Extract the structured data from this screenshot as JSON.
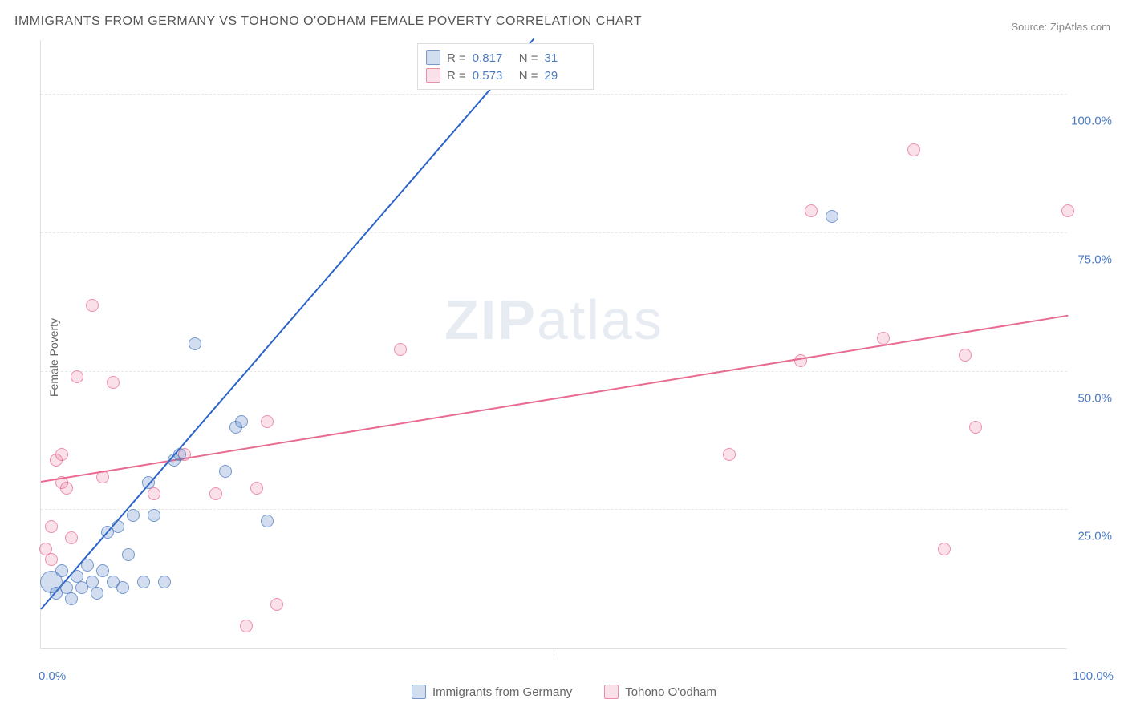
{
  "title": "IMMIGRANTS FROM GERMANY VS TOHONO O'ODHAM FEMALE POVERTY CORRELATION CHART",
  "source": "Source: ZipAtlas.com",
  "y_axis_label": "Female Poverty",
  "watermark_prefix": "ZIP",
  "watermark_suffix": "atlas",
  "chart": {
    "type": "scatter",
    "xlim": [
      0,
      100
    ],
    "ylim": [
      0,
      110
    ],
    "y_ticks": [
      25,
      50,
      75,
      100
    ],
    "y_tick_labels": [
      "25.0%",
      "50.0%",
      "75.0%",
      "100.0%"
    ],
    "x_ticks": [
      0,
      50,
      100
    ],
    "x_tick_labels": [
      "0.0%",
      "",
      "100.0%"
    ],
    "background_color": "#ffffff",
    "grid_color": "#e8e8e8",
    "axis_color": "#e0e0e0",
    "tick_label_color": "#4d7bc0",
    "axis_label_color": "#666666",
    "title_color": "#555555",
    "title_fontsize": 16,
    "label_fontsize": 14,
    "tick_fontsize": 15,
    "point_radius": 8,
    "large_point_radius": 14
  },
  "legend_top": {
    "rows": [
      {
        "color": "blue",
        "r_label": "R =",
        "r_value": "0.817",
        "n_label": "N =",
        "n_value": "31"
      },
      {
        "color": "pink",
        "r_label": "R =",
        "r_value": "0.573",
        "n_label": "N =",
        "n_value": "29"
      }
    ]
  },
  "legend_bottom": {
    "items": [
      {
        "color": "blue",
        "label": "Immigrants from Germany"
      },
      {
        "color": "pink",
        "label": "Tohono O'odham"
      }
    ]
  },
  "series": {
    "blue": {
      "color_fill": "rgba(77,123,192,0.25)",
      "color_stroke": "rgba(77,123,192,0.7)",
      "trend_color": "#2b63c8",
      "trend": {
        "x1": 0,
        "y1": 7,
        "x2": 48,
        "y2": 110
      },
      "points": [
        {
          "x": 1,
          "y": 12,
          "r": 14
        },
        {
          "x": 1.5,
          "y": 10
        },
        {
          "x": 2,
          "y": 14
        },
        {
          "x": 2.5,
          "y": 11
        },
        {
          "x": 3,
          "y": 9
        },
        {
          "x": 3.5,
          "y": 13
        },
        {
          "x": 4,
          "y": 11
        },
        {
          "x": 4.5,
          "y": 15
        },
        {
          "x": 5,
          "y": 12
        },
        {
          "x": 5.5,
          "y": 10
        },
        {
          "x": 6,
          "y": 14
        },
        {
          "x": 6.5,
          "y": 21
        },
        {
          "x": 7,
          "y": 12
        },
        {
          "x": 7.5,
          "y": 22
        },
        {
          "x": 8,
          "y": 11
        },
        {
          "x": 8.5,
          "y": 17
        },
        {
          "x": 9,
          "y": 24
        },
        {
          "x": 10,
          "y": 12
        },
        {
          "x": 10.5,
          "y": 30
        },
        {
          "x": 11,
          "y": 24
        },
        {
          "x": 12,
          "y": 12
        },
        {
          "x": 13,
          "y": 34
        },
        {
          "x": 13.5,
          "y": 35
        },
        {
          "x": 15,
          "y": 55
        },
        {
          "x": 18,
          "y": 32
        },
        {
          "x": 19,
          "y": 40
        },
        {
          "x": 19.5,
          "y": 41
        },
        {
          "x": 22,
          "y": 23
        },
        {
          "x": 38,
          "y": 108
        },
        {
          "x": 40,
          "y": 108
        },
        {
          "x": 77,
          "y": 78
        }
      ]
    },
    "pink": {
      "color_fill": "rgba(232,107,145,0.2)",
      "color_stroke": "rgba(232,107,145,0.7)",
      "trend_color": "#e86b91",
      "trend": {
        "x1": 0,
        "y1": 30,
        "x2": 100,
        "y2": 60
      },
      "points": [
        {
          "x": 0.5,
          "y": 18
        },
        {
          "x": 1,
          "y": 22
        },
        {
          "x": 1,
          "y": 16
        },
        {
          "x": 1.5,
          "y": 34
        },
        {
          "x": 2,
          "y": 35
        },
        {
          "x": 2,
          "y": 30
        },
        {
          "x": 2.5,
          "y": 29
        },
        {
          "x": 3,
          "y": 20
        },
        {
          "x": 3.5,
          "y": 49
        },
        {
          "x": 5,
          "y": 62
        },
        {
          "x": 6,
          "y": 31
        },
        {
          "x": 7,
          "y": 48
        },
        {
          "x": 11,
          "y": 28
        },
        {
          "x": 14,
          "y": 35
        },
        {
          "x": 17,
          "y": 28
        },
        {
          "x": 20,
          "y": 4
        },
        {
          "x": 21,
          "y": 29
        },
        {
          "x": 22,
          "y": 41
        },
        {
          "x": 23,
          "y": 8
        },
        {
          "x": 35,
          "y": 54
        },
        {
          "x": 67,
          "y": 35
        },
        {
          "x": 74,
          "y": 52
        },
        {
          "x": 75,
          "y": 79
        },
        {
          "x": 82,
          "y": 56
        },
        {
          "x": 85,
          "y": 90
        },
        {
          "x": 88,
          "y": 18
        },
        {
          "x": 90,
          "y": 53
        },
        {
          "x": 91,
          "y": 40
        },
        {
          "x": 100,
          "y": 79
        }
      ]
    }
  }
}
